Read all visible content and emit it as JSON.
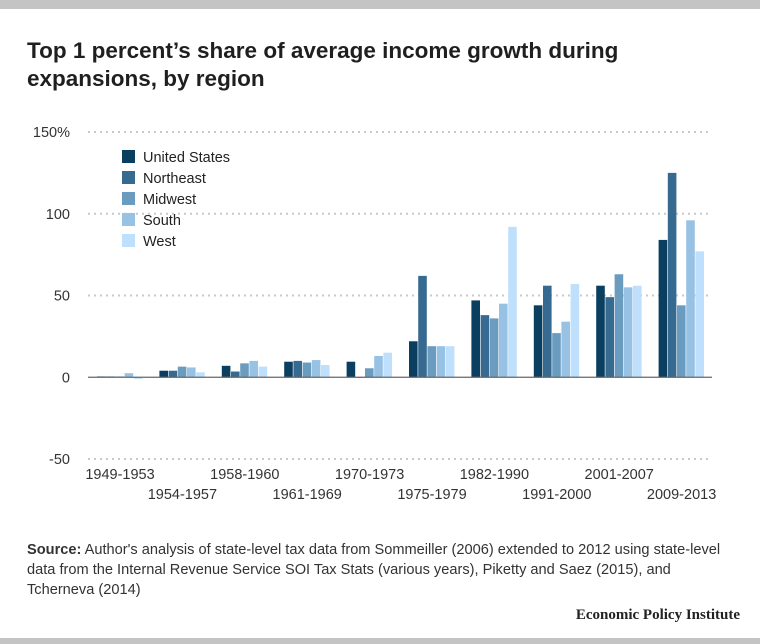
{
  "title": "Top 1 percent’s share of average income growth during expansions, by region",
  "source_label": "Source:",
  "source_text": "Author's analysis of state-level tax data from Sommeiller (2006) extended to 2012 using state-level data from the Internal Revenue Service SOI Tax Stats (various years), Piketty and Saez (2015), and Tcherneva (2014)",
  "brand": "Economic Policy Institute",
  "colors": {
    "United States": "#0b3f60",
    "Northeast": "#376a91",
    "Midwest": "#6a9cc0",
    "South": "#98c2e4",
    "West": "#bfe0fc"
  },
  "chart_data": {
    "type": "bar",
    "title": "Top 1 percent’s share of average income growth during expansions, by region",
    "categories": [
      "1949-1953",
      "1954-1957",
      "1958-1960",
      "1961-1969",
      "1970-1973",
      "1975-1979",
      "1982-1990",
      "1991-2000",
      "2001-2007",
      "2009-2013"
    ],
    "series": [
      {
        "name": "United States",
        "values": [
          0.5,
          4,
          7,
          9.5,
          9.5,
          22,
          47,
          44,
          56,
          84
        ]
      },
      {
        "name": "Northeast",
        "values": [
          0.5,
          4,
          3.5,
          10,
          0,
          62,
          38,
          56,
          49,
          125
        ]
      },
      {
        "name": "Midwest",
        "values": [
          0.5,
          6.5,
          8.5,
          9,
          5.5,
          19,
          36,
          27,
          63,
          44
        ]
      },
      {
        "name": "South",
        "values": [
          2.5,
          6,
          10,
          10.5,
          13,
          19,
          45,
          34,
          55,
          96
        ]
      },
      {
        "name": "West",
        "values": [
          -1,
          3,
          6.5,
          7.5,
          15,
          19,
          92,
          57,
          56,
          77
        ]
      }
    ],
    "yticks": [
      150,
      100,
      50,
      0,
      -50
    ],
    "ytick_labels": [
      "150%",
      "100",
      "50",
      "0",
      "-50"
    ],
    "ylim": [
      -50,
      150
    ],
    "grid": true,
    "legend_position": "top-left"
  }
}
